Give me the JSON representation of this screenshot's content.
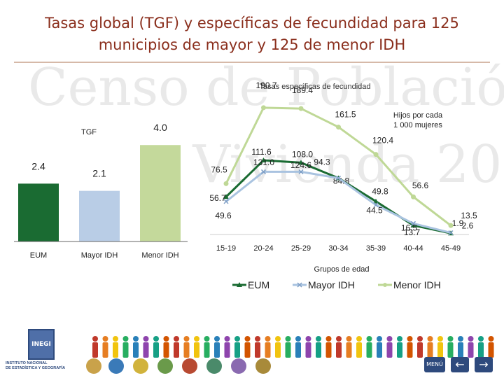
{
  "header": {
    "title_line1": "Tasas global (TGF) y específicas de fecundidad para 125",
    "title_line2": "municipios de mayor y 125 de menor IDH"
  },
  "watermark": {
    "line1": "Censo de Población",
    "line2": "y Vivienda 2010"
  },
  "chart_data": [
    {
      "type": "bar",
      "title": "TGF",
      "categories": [
        "EUM",
        "Mayor IDH",
        "Menor IDH"
      ],
      "values": [
        2.4,
        2.1,
        4.0
      ],
      "value_labels": [
        "2.4",
        "2.1",
        "4.0"
      ],
      "colors": [
        "#1a6b32",
        "#b9cde6",
        "#c4d99b"
      ],
      "ylim": [
        0,
        4.5
      ]
    },
    {
      "type": "line",
      "title": "Tasas específicas de fecundidad",
      "xlabel": "Grupos de edad",
      "ylabel": "Hijos por cada 1 000 mujeres",
      "categories": [
        "15-19",
        "20-24",
        "25-29",
        "30-34",
        "35-39",
        "40-44",
        "45-49"
      ],
      "ylim": [
        0,
        200
      ],
      "legend_position": "bottom",
      "series": [
        {
          "name": "EUM",
          "color": "#1a6b32",
          "marker": "triangle",
          "values": [
            56.7,
            111.6,
            108.0,
            84.8,
            49.8,
            13.7,
            1.9
          ],
          "labels": [
            "56.7",
            "111.6",
            "108.0",
            "84.8",
            "49.8",
            "13.7",
            "1.9"
          ]
        },
        {
          "name": "Mayor IDH",
          "color": "#a9c3e0",
          "marker": "x",
          "values": [
            49.6,
            94.3,
            94.3,
            84.8,
            44.5,
            16.5,
            2.6
          ],
          "labels": [
            "49.6",
            "",
            "94.3",
            "",
            "44.5",
            "16.5",
            "2.6"
          ]
        },
        {
          "name": "Menor IDH",
          "color": "#bfd896",
          "marker": "circle",
          "values": [
            76.5,
            190.7,
            189.4,
            161.5,
            120.4,
            56.6,
            13.5
          ],
          "labels": [
            "76.5",
            "190.7",
            "189.4",
            "161.5",
            "120.4",
            "56.6",
            "13.5"
          ]
        }
      ],
      "annotations": [
        "131.0",
        "124.6"
      ]
    }
  ],
  "footer": {
    "logo_text": "INEGI",
    "institution_line1": "INSTITUTO NACIONAL",
    "institution_line2": "DE ESTADÍSTICA Y GEOGRAFÍA",
    "nav_menu": "MENÚ",
    "nav_prev": "←",
    "nav_next": "→"
  }
}
